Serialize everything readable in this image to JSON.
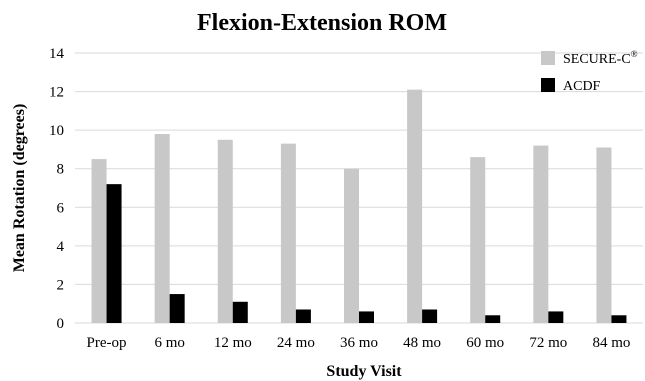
{
  "chart_data": {
    "type": "bar",
    "title": "Flexion-Extension ROM",
    "xlabel": "Study Visit",
    "ylabel": "Mean Rotation (degrees)",
    "ylim": [
      0,
      14
    ],
    "yticks": [
      "0",
      "2",
      "4",
      "6",
      "8",
      "10",
      "12",
      "14"
    ],
    "grid": true,
    "legend_position": "top-right",
    "categories": [
      "Pre-op",
      "6 mo",
      "12 mo",
      "24 mo",
      "36 mo",
      "48 mo",
      "60 mo",
      "72 mo",
      "84 mo"
    ],
    "series": [
      {
        "name": "SECURE-C",
        "name_superscript": "®",
        "color": "#c8c8c8",
        "values": [
          8.5,
          9.8,
          9.5,
          9.3,
          8.0,
          12.1,
          8.6,
          9.2,
          9.1
        ]
      },
      {
        "name": "ACDF",
        "color": "#000000",
        "values": [
          7.2,
          1.5,
          1.1,
          0.7,
          0.6,
          0.7,
          0.4,
          0.6,
          0.4
        ]
      }
    ]
  }
}
